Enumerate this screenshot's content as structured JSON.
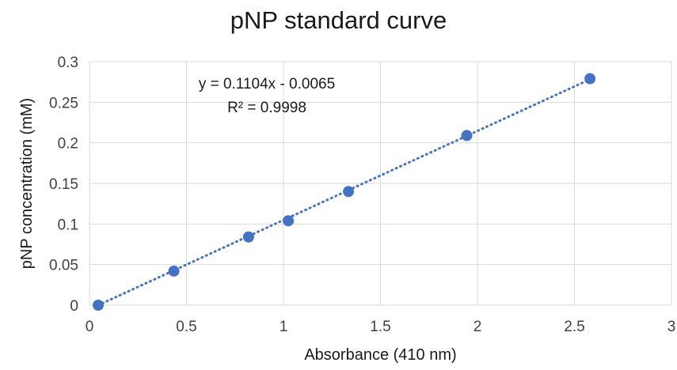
{
  "chart_data": {
    "type": "scatter",
    "title": "pNP standard curve",
    "xlabel": "Absorbance (410 nm)",
    "ylabel": "pNP concentration (mM)",
    "xlim": [
      0,
      3
    ],
    "ylim": [
      0,
      0.3
    ],
    "x_ticks": [
      "0",
      "0.5",
      "1",
      "1.5",
      "2",
      "2.5",
      "3"
    ],
    "y_ticks": [
      "0",
      "0.05",
      "0.1",
      "0.15",
      "0.2",
      "0.25",
      "0.3"
    ],
    "grid": true,
    "legend": "none",
    "series": [
      {
        "x": [
          0.045,
          0.435,
          0.82,
          1.025,
          1.335,
          1.945,
          2.58
        ],
        "y": [
          0,
          0.042,
          0.084,
          0.104,
          0.14,
          0.209,
          0.279
        ],
        "color": "#4472C4"
      }
    ],
    "trendline": {
      "type": "linear",
      "slope": 0.1104,
      "intercept": -0.0065,
      "style": "dotted",
      "color": "#4472C4",
      "equation_label": "y = 0.1104x - 0.0065",
      "r2_label": "R² = 0.9998"
    }
  }
}
